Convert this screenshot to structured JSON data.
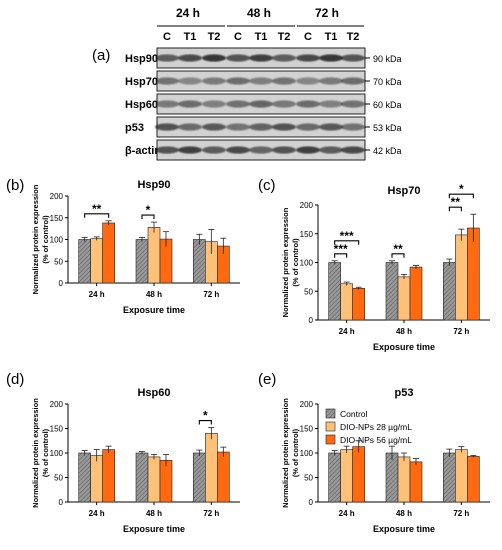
{
  "blot": {
    "panel_label": "(a)",
    "time_headers": [
      "24 h",
      "48 h",
      "72 h"
    ],
    "lane_labels": [
      "C",
      "T1",
      "T2",
      "C",
      "T1",
      "T2",
      "C",
      "T1",
      "T2"
    ],
    "rows": [
      {
        "protein": "Hsp90",
        "kda": "90 kDa"
      },
      {
        "protein": "Hsp70",
        "kda": "70 kDa"
      },
      {
        "protein": "Hsp60",
        "kda": "60 kDa"
      },
      {
        "protein": "p53",
        "kda": "53 kDa"
      },
      {
        "protein": "β-actin",
        "kda": "42 kDa"
      }
    ]
  },
  "legend": [
    "Control",
    "DIO-NPs 28 µg/mL",
    "DIO-NPs 56 µg/mL"
  ],
  "colors": {
    "control": "#8c8c8c",
    "t1": "#ffc078",
    "t2": "#ff6a10"
  },
  "chart_data": [
    {
      "panel": "(b)",
      "type": "bar",
      "title": "Hsp90",
      "categories": [
        "24 h",
        "48 h",
        "72 h"
      ],
      "xlabel": "Exposure time",
      "ylabel": "Normalized protein expression (% of control)",
      "ylim": [
        0,
        200
      ],
      "yticks": [
        0,
        50,
        100,
        150,
        200
      ],
      "series": [
        {
          "name": "Control",
          "values": [
            100,
            100,
            100
          ],
          "errors": [
            5,
            5,
            12
          ]
        },
        {
          "name": "DIO-NPs 28 µg/mL",
          "values": [
            102,
            128,
            95
          ],
          "errors": [
            4,
            12,
            28
          ]
        },
        {
          "name": "DIO-NPs 56 µg/mL",
          "values": [
            138,
            101,
            85
          ],
          "errors": [
            5,
            17,
            18
          ]
        }
      ],
      "annotations": [
        {
          "group": 0,
          "from": 0,
          "to": 2,
          "label": "**"
        },
        {
          "group": 1,
          "from": 0,
          "to": 1,
          "label": "*"
        }
      ]
    },
    {
      "panel": "(c)",
      "type": "bar",
      "title": "Hsp70",
      "categories": [
        "24 h",
        "48 h",
        "72 h"
      ],
      "xlabel": "Exposure time",
      "ylabel": "Normalized protein expression (% of control)",
      "ylim": [
        0,
        200
      ],
      "yticks": [
        0,
        50,
        100,
        150,
        200
      ],
      "series": [
        {
          "name": "Control",
          "values": [
            100,
            100,
            100
          ],
          "errors": [
            3,
            3,
            6
          ]
        },
        {
          "name": "DIO-NPs 28 µg/mL",
          "values": [
            63,
            75,
            148
          ],
          "errors": [
            3,
            4,
            10
          ]
        },
        {
          "name": "DIO-NPs 56 µg/mL",
          "values": [
            55,
            92,
            160
          ],
          "errors": [
            2,
            3,
            24
          ]
        }
      ],
      "annotations": [
        {
          "group": 0,
          "from": 0,
          "to": 1,
          "label": "***"
        },
        {
          "group": 0,
          "from": 0,
          "to": 2,
          "label": "***"
        },
        {
          "group": 1,
          "from": 0,
          "to": 1,
          "label": "**"
        },
        {
          "group": 2,
          "from": 0,
          "to": 1,
          "label": "**"
        },
        {
          "group": 2,
          "from": 0,
          "to": 2,
          "label": "*"
        }
      ]
    },
    {
      "panel": "(d)",
      "type": "bar",
      "title": "Hsp60",
      "categories": [
        "24 h",
        "48 h",
        "72 h"
      ],
      "xlabel": "Exposure time",
      "ylabel": "Normalized protein expression (% of control)",
      "ylim": [
        0,
        200
      ],
      "yticks": [
        0,
        50,
        100,
        150,
        200
      ],
      "series": [
        {
          "name": "Control",
          "values": [
            100,
            100,
            100
          ],
          "errors": [
            5,
            3,
            6
          ]
        },
        {
          "name": "DIO-NPs 28 µg/mL",
          "values": [
            95,
            92,
            140
          ],
          "errors": [
            12,
            5,
            12
          ]
        },
        {
          "name": "DIO-NPs 56 µg/mL",
          "values": [
            107,
            85,
            102
          ],
          "errors": [
            7,
            12,
            10
          ]
        }
      ],
      "annotations": [
        {
          "group": 2,
          "from": 0,
          "to": 1,
          "label": "*"
        }
      ]
    },
    {
      "panel": "(e)",
      "type": "bar",
      "title": "p53",
      "categories": [
        "24 h",
        "48 h",
        "72 h"
      ],
      "xlabel": "Exposure time",
      "ylabel": "Normalized protein expression (% of control)",
      "ylim": [
        0,
        200
      ],
      "yticks": [
        0,
        50,
        100,
        150,
        200
      ],
      "series": [
        {
          "name": "Control",
          "values": [
            100,
            100,
            100
          ],
          "errors": [
            5,
            14,
            8
          ]
        },
        {
          "name": "DIO-NPs 28 µg/mL",
          "values": [
            107,
            92,
            107
          ],
          "errors": [
            7,
            8,
            6
          ]
        },
        {
          "name": "DIO-NPs 56 µg/mL",
          "values": [
            113,
            82,
            93
          ],
          "errors": [
            12,
            7,
            2
          ]
        }
      ],
      "annotations": []
    }
  ]
}
